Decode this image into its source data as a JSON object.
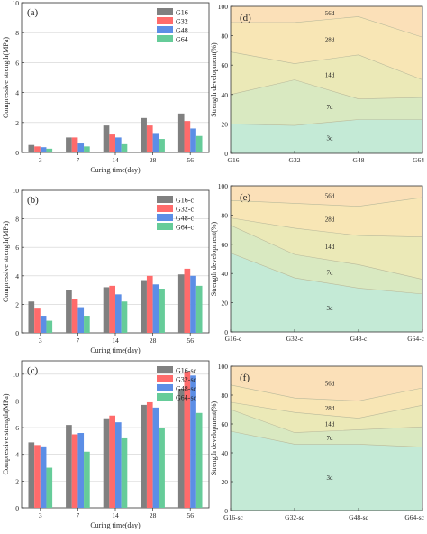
{
  "chart_data": [
    {
      "type": "bar",
      "label": "(a)",
      "xlabel": "Curing time(day)",
      "ylabel": "Compressive strength(MPa)",
      "ylim": [
        0,
        10
      ],
      "yticks": [
        0,
        2,
        4,
        6,
        8,
        10
      ],
      "categories": [
        "3",
        "7",
        "14",
        "28",
        "56"
      ],
      "series": [
        {
          "name": "G16",
          "color": "#808080",
          "values": [
            0.5,
            1.0,
            1.8,
            2.3,
            2.6
          ]
        },
        {
          "name": "G32",
          "color": "#ff6b6b",
          "values": [
            0.4,
            1.0,
            1.2,
            1.8,
            2.1
          ]
        },
        {
          "name": "G48",
          "color": "#5c8ee6",
          "values": [
            0.35,
            0.6,
            1.0,
            1.3,
            1.6
          ]
        },
        {
          "name": "G64",
          "color": "#66cc99",
          "values": [
            0.25,
            0.4,
            0.55,
            0.9,
            1.1
          ]
        }
      ]
    },
    {
      "type": "bar",
      "label": "(b)",
      "xlabel": "Curing time(day)",
      "ylabel": "Compressive strength(MPa)",
      "ylim": [
        0,
        10
      ],
      "yticks": [
        0,
        2,
        4,
        6,
        8,
        10
      ],
      "categories": [
        "3",
        "7",
        "14",
        "28",
        "56"
      ],
      "series": [
        {
          "name": "G16-c",
          "color": "#808080",
          "values": [
            2.2,
            3.0,
            3.2,
            3.7,
            4.1
          ]
        },
        {
          "name": "G32-c",
          "color": "#ff6b6b",
          "values": [
            1.7,
            2.4,
            3.3,
            4.0,
            4.5
          ]
        },
        {
          "name": "G48-c",
          "color": "#5c8ee6",
          "values": [
            1.2,
            1.8,
            2.7,
            3.4,
            4.0
          ]
        },
        {
          "name": "G64-c",
          "color": "#66cc99",
          "values": [
            0.85,
            1.2,
            2.2,
            3.1,
            3.3
          ]
        }
      ]
    },
    {
      "type": "bar",
      "label": "(c)",
      "xlabel": "Curing time(day)",
      "ylabel": "Compressive strength(MPa)",
      "ylim": [
        0,
        11
      ],
      "yticks": [
        0,
        2,
        4,
        6,
        8,
        10
      ],
      "categories": [
        "3",
        "7",
        "14",
        "28",
        "56"
      ],
      "series": [
        {
          "name": "G16-sc",
          "color": "#808080",
          "values": [
            4.9,
            6.2,
            6.7,
            7.7,
            8.9
          ]
        },
        {
          "name": "G32-sc",
          "color": "#ff6b6b",
          "values": [
            4.7,
            5.5,
            6.9,
            7.9,
            10.2
          ]
        },
        {
          "name": "G48-sc",
          "color": "#5c8ee6",
          "values": [
            4.6,
            5.6,
            6.4,
            7.5,
            9.9
          ]
        },
        {
          "name": "G64-sc",
          "color": "#66cc99",
          "values": [
            3.0,
            4.2,
            5.2,
            6.0,
            7.1
          ]
        }
      ]
    },
    {
      "type": "area",
      "label": "(d)",
      "ylabel": "Strength development(%)",
      "ylim": [
        0,
        100
      ],
      "yticks": [
        0,
        20,
        40,
        60,
        80,
        100
      ],
      "categories": [
        "G16",
        "G32",
        "G48",
        "G64"
      ],
      "boundaries": [
        [
          20,
          19,
          23,
          23
        ],
        [
          40,
          50,
          37,
          38
        ],
        [
          69,
          61,
          67,
          50
        ],
        [
          89,
          89,
          93,
          79
        ]
      ],
      "bands": [
        {
          "name": "3d",
          "color": "#c4ead6"
        },
        {
          "name": "7d",
          "color": "#d9e9c1"
        },
        {
          "name": "14d",
          "color": "#ebe9b7"
        },
        {
          "name": "28d",
          "color": "#f8e6b5"
        },
        {
          "name": "56d",
          "color": "#fbe0b8"
        }
      ]
    },
    {
      "type": "area",
      "label": "(e)",
      "ylabel": "Strength development(%)",
      "ylim": [
        0,
        100
      ],
      "yticks": [
        0,
        20,
        40,
        60,
        80,
        100
      ],
      "categories": [
        "G16-c",
        "G32-c",
        "G48-c",
        "G64-c"
      ],
      "boundaries": [
        [
          54,
          37,
          30,
          26
        ],
        [
          73,
          53,
          46,
          36
        ],
        [
          78,
          71,
          66,
          65
        ],
        [
          90,
          88,
          86,
          92
        ]
      ],
      "bands": [
        {
          "name": "3d",
          "color": "#c4ead6"
        },
        {
          "name": "7d",
          "color": "#d9e9c1"
        },
        {
          "name": "14d",
          "color": "#ebe9b7"
        },
        {
          "name": "28d",
          "color": "#f8e6b5"
        },
        {
          "name": "56d",
          "color": "#fbe0b8"
        }
      ]
    },
    {
      "type": "area",
      "label": "(f)",
      "ylabel": "Strength development(%)",
      "ylim": [
        0,
        100
      ],
      "yticks": [
        0,
        20,
        40,
        60,
        80,
        100
      ],
      "categories": [
        "G16-sc",
        "G32-sc",
        "G48-sc",
        "G64-sc"
      ],
      "boundaries": [
        [
          55,
          46,
          46,
          44
        ],
        [
          70,
          54,
          56,
          58
        ],
        [
          75,
          68,
          64,
          73
        ],
        [
          87,
          78,
          76,
          85
        ]
      ],
      "bands": [
        {
          "name": "3d",
          "color": "#c4ead6"
        },
        {
          "name": "7d",
          "color": "#d9e9c1"
        },
        {
          "name": "14d",
          "color": "#ebe9b7"
        },
        {
          "name": "28d",
          "color": "#f8e6b5"
        },
        {
          "name": "56d",
          "color": "#fbe0b8"
        }
      ]
    }
  ]
}
